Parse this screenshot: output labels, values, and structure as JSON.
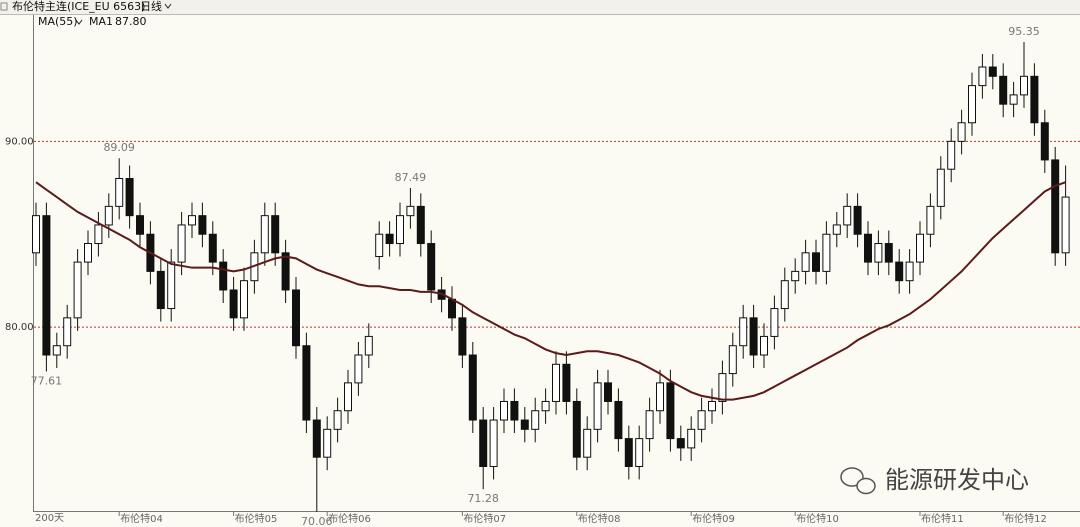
{
  "chart_data": {
    "type": "candlestick",
    "header": {
      "symbol": "布伦特主连(ICE_EU 6563)",
      "period": "日线"
    },
    "indicator": {
      "label": "MA(55)",
      "name": "MA1",
      "last_label": "87.80",
      "color": "#5c1a1a"
    },
    "period_label": "200天",
    "watermark": "能源研发中心",
    "categories": [
      null,
      null,
      null,
      null,
      null,
      null,
      null,
      null,
      "布伦特04",
      null,
      null,
      null,
      null,
      null,
      null,
      null,
      null,
      null,
      null,
      "布伦特05",
      null,
      null,
      null,
      null,
      null,
      null,
      null,
      null,
      "布伦特06",
      null,
      null,
      null,
      null,
      null,
      null,
      null,
      null,
      null,
      null,
      null,
      null,
      "布伦特07",
      null,
      null,
      null,
      null,
      null,
      null,
      null,
      null,
      null,
      null,
      "布伦特08",
      null,
      null,
      null,
      null,
      null,
      null,
      null,
      null,
      null,
      null,
      "布伦特09",
      null,
      null,
      null,
      null,
      null,
      null,
      null,
      null,
      null,
      "布伦特10",
      null,
      null,
      null,
      null,
      null,
      null,
      null,
      null,
      null,
      null,
      null,
      "布伦特11",
      null,
      null,
      null,
      null,
      null,
      null,
      null,
      "布伦特12",
      null,
      null,
      null,
      null,
      null,
      null
    ],
    "open": [
      84,
      86,
      78.5,
      79,
      80.5,
      83.5,
      84.5,
      85.5,
      86.5,
      88,
      86,
      85,
      83,
      81,
      83.5,
      85.5,
      86,
      85,
      83.5,
      82,
      80.5,
      82.5,
      84,
      86,
      84,
      82,
      79,
      75,
      73,
      74.5,
      75.5,
      77,
      78.5,
      83.8,
      85,
      84.5,
      86,
      86.5,
      84.5,
      82,
      81.5,
      80.5,
      78.5,
      75,
      72.5,
      75,
      76,
      75,
      74.5,
      75.5,
      76,
      78,
      76,
      73,
      74.5,
      77,
      76,
      74,
      72.5,
      74,
      75.5,
      77,
      74,
      73.5,
      74.5,
      75.5,
      76,
      77.5,
      79,
      80.5,
      78.5,
      79.5,
      81,
      82.5,
      83,
      84,
      83,
      85,
      85.5,
      86.5,
      85,
      83.5,
      84.5,
      83.5,
      82.5,
      83.5,
      85,
      86.5,
      88.5,
      90,
      91,
      93,
      94,
      93.5,
      92,
      92.5,
      93.5,
      91,
      89,
      84
    ],
    "high": [
      86.7,
      86.7,
      79.7,
      81.2,
      84.2,
      85.2,
      86.2,
      87.2,
      89.09,
      88.7,
      86.7,
      85.7,
      83.7,
      84.2,
      86.2,
      86.7,
      86.7,
      85.7,
      84.2,
      82.7,
      83.2,
      84.7,
      86.7,
      86.7,
      84.7,
      82.7,
      79.7,
      75.7,
      75.2,
      76.2,
      77.7,
      79.2,
      80.2,
      85.7,
      85.7,
      86.7,
      87.49,
      87.2,
      85.2,
      82.7,
      82.2,
      81.2,
      79.2,
      75.7,
      75.7,
      76.7,
      76.7,
      75.7,
      76.2,
      76.7,
      78.7,
      78.7,
      76.7,
      75.2,
      77.7,
      77.7,
      76.7,
      74.7,
      74.7,
      76.2,
      77.7,
      77.7,
      74.7,
      75.2,
      76.2,
      76.7,
      78.2,
      79.7,
      81.2,
      81.2,
      80.2,
      81.7,
      83.2,
      83.7,
      84.7,
      84.7,
      85.7,
      86.2,
      87.2,
      87.2,
      85.7,
      85.2,
      85.2,
      84.2,
      84.2,
      85.7,
      87.2,
      89.2,
      90.7,
      91.7,
      93.7,
      94.7,
      94.7,
      94.2,
      93.2,
      95.35,
      94.2,
      91.7,
      89.7,
      88.7
    ],
    "low": [
      83.3,
      77.61,
      77.8,
      78.3,
      79.8,
      82.8,
      83.8,
      84.8,
      85.8,
      85.3,
      84.3,
      82.3,
      80.3,
      80.3,
      82.8,
      84.8,
      84.3,
      82.8,
      81.3,
      79.8,
      79.8,
      81.8,
      83.3,
      83.3,
      81.3,
      78.3,
      74.3,
      70.06,
      72.3,
      73.8,
      74.8,
      76.3,
      77.8,
      83.1,
      83.8,
      83.8,
      85.3,
      83.8,
      81.3,
      80.8,
      79.8,
      77.8,
      74.3,
      71.28,
      71.8,
      74.3,
      74.3,
      73.8,
      73.8,
      74.8,
      75.3,
      75.3,
      72.3,
      72.3,
      73.8,
      75.3,
      73.3,
      71.8,
      71.8,
      73.3,
      74.8,
      73.3,
      72.8,
      72.8,
      73.8,
      74.8,
      75.3,
      76.8,
      78.3,
      77.8,
      77.8,
      78.8,
      80.3,
      81.8,
      82.3,
      82.3,
      82.3,
      84.3,
      84.8,
      84.3,
      82.8,
      82.8,
      82.8,
      81.8,
      81.8,
      82.8,
      84.3,
      85.8,
      87.8,
      89.3,
      90.3,
      92.3,
      92.8,
      91.3,
      91.3,
      91.8,
      90.3,
      88.3,
      83.3,
      83.3
    ],
    "close": [
      86,
      78.5,
      79,
      80.5,
      83.5,
      84.5,
      85.5,
      86.5,
      88,
      86,
      85,
      83,
      81,
      83.5,
      85.5,
      86,
      85,
      83.5,
      82,
      80.5,
      82.5,
      84,
      86,
      84,
      82,
      79,
      75,
      73,
      74.5,
      75.5,
      77,
      78.5,
      79.5,
      85,
      84.5,
      86,
      86.5,
      84.5,
      82,
      81.5,
      80.5,
      78.5,
      75,
      72.5,
      75,
      76,
      75,
      74.5,
      75.5,
      76,
      78,
      76,
      73,
      74.5,
      77,
      76,
      74,
      72.5,
      74,
      75.5,
      77,
      74,
      73.5,
      74.5,
      75.5,
      76,
      77.5,
      79,
      80.5,
      78.5,
      79.5,
      81,
      82.5,
      83,
      84,
      83,
      85,
      85.5,
      86.5,
      85,
      83.5,
      84.5,
      83.5,
      82.5,
      83.5,
      85,
      86.5,
      88.5,
      90,
      91,
      93,
      94,
      93.5,
      92,
      92.5,
      93.5,
      91,
      89,
      84,
      87
    ],
    "ma": [
      87.8,
      87.4,
      87.0,
      86.6,
      86.2,
      85.9,
      85.6,
      85.3,
      85.0,
      84.7,
      84.3,
      84.0,
      83.7,
      83.4,
      83.3,
      83.2,
      83.2,
      83.2,
      83.1,
      83.0,
      83.1,
      83.3,
      83.5,
      83.7,
      83.8,
      83.7,
      83.4,
      83.1,
      82.9,
      82.7,
      82.5,
      82.3,
      82.2,
      82.2,
      82.1,
      82.0,
      82.0,
      81.9,
      81.9,
      81.8,
      81.5,
      81.2,
      80.8,
      80.5,
      80.2,
      79.9,
      79.6,
      79.4,
      79.1,
      78.8,
      78.6,
      78.5,
      78.6,
      78.7,
      78.7,
      78.6,
      78.5,
      78.3,
      78.1,
      77.8,
      77.5,
      77.1,
      76.8,
      76.5,
      76.3,
      76.2,
      76.1,
      76.1,
      76.2,
      76.3,
      76.5,
      76.8,
      77.1,
      77.4,
      77.7,
      78.0,
      78.3,
      78.6,
      78.9,
      79.3,
      79.6,
      79.9,
      80.1,
      80.4,
      80.7,
      81.1,
      81.5,
      82.0,
      82.5,
      83.0,
      83.6,
      84.2,
      84.8,
      85.3,
      85.8,
      86.3,
      86.8,
      87.3,
      87.6,
      87.8
    ],
    "up_color": "#ffffff",
    "down_color": "#111111",
    "ylim": [
      70.05,
      96.8
    ],
    "yticks": [
      {
        "value": 90,
        "label": "90.00"
      },
      {
        "value": 80,
        "label": "80.00"
      }
    ],
    "grid": true
  }
}
